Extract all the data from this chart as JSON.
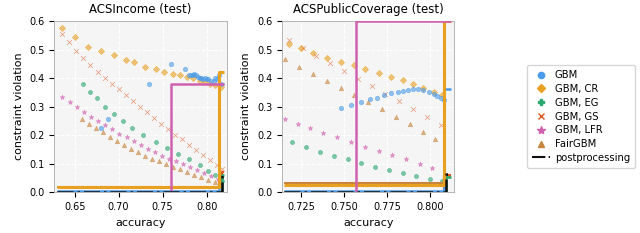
{
  "plot1_title": "ACSIncome (test)",
  "plot2_title": "ACSPublicCoverage (test)",
  "xlabel": "accuracy",
  "ylabel": "constraint violation",
  "ylim": [
    0.0,
    0.6
  ],
  "plot1_xlim": [
    0.627,
    0.823
  ],
  "plot2_xlim": [
    0.714,
    0.814
  ],
  "colors": {
    "GBM": "#4C9BE8",
    "GBM_CR": "#E8A020",
    "GBM_EG": "#2CA870",
    "GBM_GS": "#E05820",
    "GBM_LFR": "#D060B0",
    "FairGBM": "#C8843C",
    "postprocessing": "#111111"
  },
  "yticks": [
    0.0,
    0.1,
    0.2,
    0.3,
    0.4,
    0.5,
    0.6
  ],
  "plot1_xticks": [
    0.65,
    0.7,
    0.75,
    0.8
  ],
  "plot2_xticks": [
    0.725,
    0.75,
    0.775,
    0.8
  ],
  "plot1_scatter": {
    "GBM": {
      "x": [
        0.68,
        0.688,
        0.735,
        0.76,
        0.775,
        0.78,
        0.782,
        0.784,
        0.786,
        0.788,
        0.79,
        0.792,
        0.794,
        0.796,
        0.798,
        0.8,
        0.802,
        0.805,
        0.808,
        0.81,
        0.812,
        0.814,
        0.816
      ],
      "y": [
        0.225,
        0.255,
        0.38,
        0.45,
        0.43,
        0.41,
        0.41,
        0.41,
        0.415,
        0.41,
        0.405,
        0.4,
        0.4,
        0.395,
        0.4,
        0.395,
        0.395,
        0.39,
        0.39,
        0.4,
        0.395,
        0.41,
        0.38
      ]
    },
    "GBM_CR": {
      "x": [
        0.636,
        0.65,
        0.665,
        0.68,
        0.695,
        0.708,
        0.718,
        0.73,
        0.742,
        0.752,
        0.762,
        0.77,
        0.778,
        0.785,
        0.792,
        0.798,
        0.804,
        0.81,
        0.816
      ],
      "y": [
        0.575,
        0.545,
        0.51,
        0.495,
        0.48,
        0.465,
        0.455,
        0.44,
        0.43,
        0.42,
        0.415,
        0.41,
        0.405,
        0.4,
        0.39,
        0.385,
        0.38,
        0.375,
        0.37
      ]
    },
    "GBM_EG": {
      "x": [
        0.66,
        0.668,
        0.675,
        0.685,
        0.695,
        0.705,
        0.715,
        0.728,
        0.742,
        0.755,
        0.768,
        0.78,
        0.792,
        0.802,
        0.81,
        0.816,
        0.818
      ],
      "y": [
        0.38,
        0.35,
        0.33,
        0.3,
        0.275,
        0.25,
        0.225,
        0.2,
        0.175,
        0.155,
        0.135,
        0.115,
        0.095,
        0.075,
        0.06,
        0.05,
        0.04
      ]
    },
    "GBM_GS": {
      "x": [
        0.636,
        0.644,
        0.652,
        0.66,
        0.668,
        0.676,
        0.684,
        0.692,
        0.7,
        0.708,
        0.716,
        0.724,
        0.732,
        0.74,
        0.748,
        0.756,
        0.764,
        0.772,
        0.78,
        0.788,
        0.796,
        0.804,
        0.812,
        0.818
      ],
      "y": [
        0.555,
        0.525,
        0.495,
        0.47,
        0.445,
        0.42,
        0.4,
        0.38,
        0.36,
        0.34,
        0.32,
        0.3,
        0.28,
        0.26,
        0.24,
        0.22,
        0.2,
        0.185,
        0.165,
        0.148,
        0.13,
        0.112,
        0.095,
        0.08
      ]
    },
    "GBM_LFR": {
      "x": [
        0.636,
        0.645,
        0.653,
        0.661,
        0.669,
        0.677,
        0.685,
        0.693,
        0.701,
        0.709,
        0.717,
        0.725,
        0.733,
        0.741,
        0.749,
        0.757,
        0.765,
        0.773,
        0.781,
        0.789,
        0.797,
        0.805,
        0.813
      ],
      "y": [
        0.335,
        0.315,
        0.298,
        0.282,
        0.265,
        0.25,
        0.235,
        0.22,
        0.205,
        0.192,
        0.178,
        0.165,
        0.152,
        0.14,
        0.128,
        0.118,
        0.108,
        0.098,
        0.088,
        0.078,
        0.068,
        0.058,
        0.048
      ]
    },
    "FairGBM": {
      "x": [
        0.658,
        0.666,
        0.674,
        0.682,
        0.69,
        0.698,
        0.706,
        0.714,
        0.722,
        0.73,
        0.738,
        0.746,
        0.754,
        0.762,
        0.77,
        0.778,
        0.786,
        0.794,
        0.802,
        0.81
      ],
      "y": [
        0.255,
        0.24,
        0.225,
        0.21,
        0.195,
        0.18,
        0.165,
        0.152,
        0.14,
        0.128,
        0.118,
        0.108,
        0.098,
        0.088,
        0.08,
        0.072,
        0.062,
        0.052,
        0.043,
        0.036
      ]
    }
  },
  "plot1_lines": {
    "GBM": {
      "x": [
        0.63,
        0.814,
        0.814,
        0.82
      ],
      "y": [
        0.005,
        0.005,
        0.38,
        0.38
      ]
    },
    "GBM_CR": {
      "x": [
        0.63,
        0.814,
        0.814,
        0.82
      ],
      "y": [
        0.018,
        0.018,
        0.42,
        0.42
      ]
    },
    "GBM_EG": {
      "x": [
        0.63,
        0.817,
        0.817,
        0.82
      ],
      "y": [
        0.002,
        0.002,
        0.06,
        0.06
      ]
    },
    "GBM_GS": {
      "x": [
        0.63,
        0.817,
        0.817,
        0.82
      ],
      "y": [
        0.002,
        0.002,
        0.07,
        0.07
      ]
    },
    "GBM_LFR": {
      "x": [
        0.76,
        0.76,
        0.82
      ],
      "y": [
        0.005,
        0.38,
        0.38
      ]
    },
    "FairGBM": {
      "x": [
        0.63,
        0.815,
        0.815,
        0.82
      ],
      "y": [
        0.018,
        0.018,
        0.06,
        0.06
      ]
    },
    "postprocessing": {
      "x": [
        0.63,
        0.818,
        0.818,
        0.82
      ],
      "y": [
        0.0,
        0.0,
        0.065,
        0.065
      ]
    }
  },
  "plot2_scatter": {
    "GBM": {
      "x": [
        0.748,
        0.754,
        0.76,
        0.765,
        0.769,
        0.773,
        0.777,
        0.781,
        0.784,
        0.787,
        0.79,
        0.793,
        0.796,
        0.799,
        0.802,
        0.804,
        0.806,
        0.808
      ],
      "y": [
        0.295,
        0.305,
        0.315,
        0.325,
        0.33,
        0.34,
        0.348,
        0.352,
        0.356,
        0.358,
        0.36,
        0.362,
        0.358,
        0.352,
        0.345,
        0.338,
        0.33,
        0.322
      ]
    },
    "GBM_CR": {
      "x": [
        0.718,
        0.725,
        0.732,
        0.74,
        0.748,
        0.756,
        0.762,
        0.77,
        0.777,
        0.784,
        0.79,
        0.796,
        0.802,
        0.807
      ],
      "y": [
        0.52,
        0.505,
        0.488,
        0.472,
        0.458,
        0.445,
        0.432,
        0.418,
        0.405,
        0.392,
        0.378,
        0.365,
        0.352,
        0.34
      ]
    },
    "GBM_EG": {
      "x": [
        0.72,
        0.728,
        0.736,
        0.744,
        0.752,
        0.76,
        0.768,
        0.776,
        0.784,
        0.792,
        0.8,
        0.807
      ],
      "y": [
        0.175,
        0.158,
        0.142,
        0.128,
        0.115,
        0.102,
        0.09,
        0.078,
        0.067,
        0.057,
        0.047,
        0.038
      ]
    },
    "GBM_GS": {
      "x": [
        0.718,
        0.726,
        0.734,
        0.742,
        0.75,
        0.758,
        0.766,
        0.774,
        0.782,
        0.79,
        0.798,
        0.806
      ],
      "y": [
        0.535,
        0.505,
        0.478,
        0.452,
        0.425,
        0.398,
        0.372,
        0.345,
        0.318,
        0.29,
        0.262,
        0.235
      ]
    },
    "GBM_LFR": {
      "x": [
        0.716,
        0.723,
        0.73,
        0.738,
        0.746,
        0.754,
        0.762,
        0.77,
        0.778,
        0.786,
        0.794,
        0.801
      ],
      "y": [
        0.255,
        0.24,
        0.225,
        0.208,
        0.192,
        0.176,
        0.16,
        0.145,
        0.13,
        0.115,
        0.1,
        0.086
      ]
    },
    "FairGBM": {
      "x": [
        0.716,
        0.724,
        0.732,
        0.74,
        0.748,
        0.756,
        0.764,
        0.772,
        0.78,
        0.788,
        0.796,
        0.803
      ],
      "y": [
        0.468,
        0.44,
        0.415,
        0.39,
        0.365,
        0.34,
        0.315,
        0.29,
        0.265,
        0.238,
        0.212,
        0.185
      ]
    }
  },
  "plot2_lines": {
    "GBM": {
      "x": [
        0.715,
        0.808,
        0.808,
        0.812
      ],
      "y": [
        0.005,
        0.005,
        0.36,
        0.36
      ]
    },
    "GBM_CR": {
      "x": [
        0.715,
        0.808,
        0.808,
        0.812
      ],
      "y": [
        0.025,
        0.025,
        0.6,
        0.6
      ]
    },
    "GBM_EG": {
      "x": [
        0.715,
        0.809,
        0.809,
        0.812
      ],
      "y": [
        0.002,
        0.002,
        0.055,
        0.055
      ]
    },
    "GBM_GS": {
      "x": [
        0.715,
        0.808,
        0.808,
        0.812
      ],
      "y": [
        0.002,
        0.002,
        0.06,
        0.06
      ]
    },
    "GBM_LFR": {
      "x": [
        0.757,
        0.757,
        0.812
      ],
      "y": [
        0.002,
        0.6,
        0.6
      ]
    },
    "FairGBM": {
      "x": [
        0.715,
        0.808,
        0.808,
        0.812
      ],
      "y": [
        0.032,
        0.032,
        0.055,
        0.055
      ]
    },
    "postprocessing": {
      "x": [
        0.715,
        0.809,
        0.809,
        0.812
      ],
      "y": [
        0.0,
        0.0,
        0.065,
        0.065
      ]
    }
  }
}
